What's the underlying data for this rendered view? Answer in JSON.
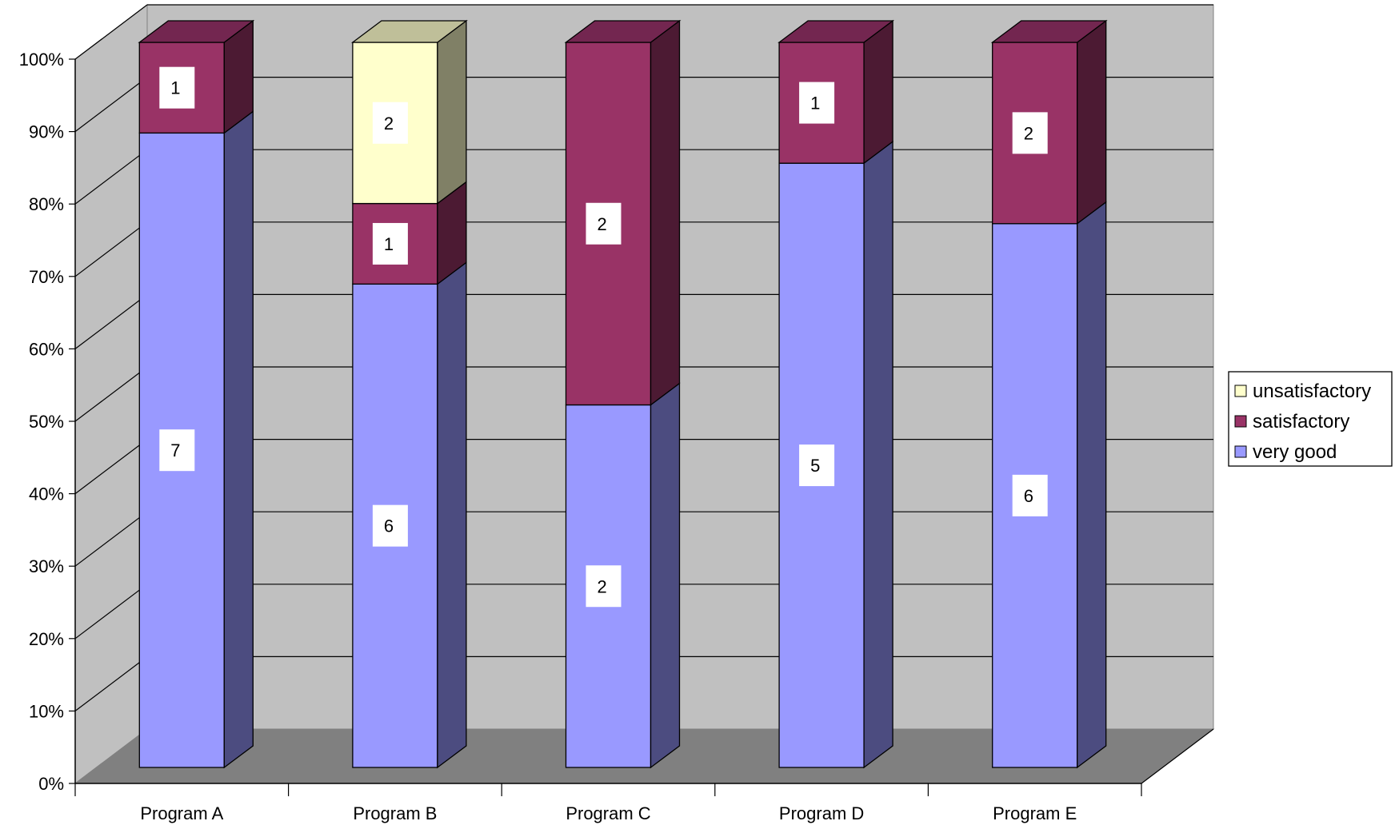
{
  "chart_data": {
    "type": "bar",
    "stacked": "percent",
    "three_d": true,
    "categories": [
      "Program A",
      "Program B",
      "Program C",
      "Program D",
      "Program E"
    ],
    "series": [
      {
        "name": "very good",
        "values": [
          7,
          6,
          2,
          5,
          6
        ],
        "color": "#9999FF",
        "side_color": "#4C4C80"
      },
      {
        "name": "satisfactory",
        "values": [
          1,
          1,
          2,
          1,
          2
        ],
        "color": "#993366",
        "side_color": "#4C1A33"
      },
      {
        "name": "unsatisfactory",
        "values": [
          0,
          2,
          0,
          0,
          0
        ],
        "color": "#FFFFCC",
        "side_color": "#808066"
      }
    ],
    "y_ticks": [
      "0%",
      "10%",
      "20%",
      "30%",
      "40%",
      "50%",
      "60%",
      "70%",
      "80%",
      "90%",
      "100%"
    ],
    "ylim": [
      0,
      100
    ],
    "grid": true,
    "legend": {
      "position": "right",
      "order": [
        "unsatisfactory",
        "satisfactory",
        "very good"
      ]
    },
    "data_labels": true,
    "colors": {
      "wall": "#C0C0C0",
      "floor": "#808080",
      "gridline": "#000000"
    }
  }
}
